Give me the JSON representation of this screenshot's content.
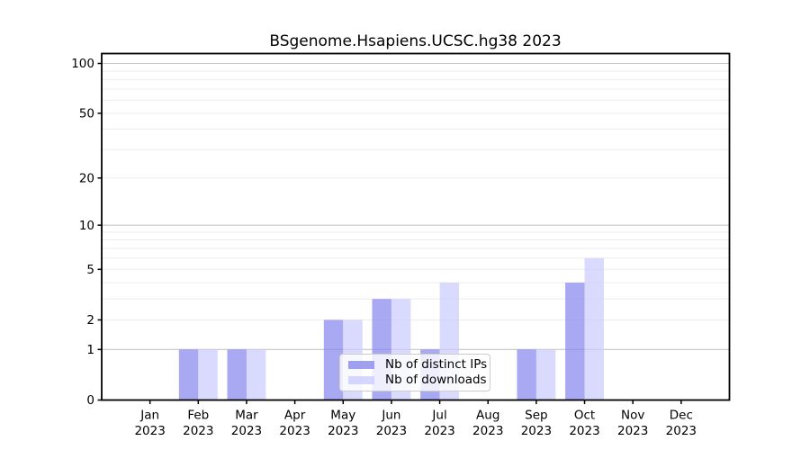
{
  "chart_data": {
    "type": "bar",
    "title": "BSgenome.Hsapiens.UCSC.hg38 2023",
    "categories": [
      "Jan",
      "Feb",
      "Mar",
      "Apr",
      "May",
      "Jun",
      "Jul",
      "Aug",
      "Sep",
      "Oct",
      "Nov",
      "Dec"
    ],
    "x_year_label": "2023",
    "series": [
      {
        "name": "Nb of distinct IPs",
        "color": "#8888ee",
        "fill_opacity": 0.72,
        "values": [
          0,
          1,
          1,
          0,
          2,
          3,
          1,
          0,
          1,
          4,
          0,
          0
        ]
      },
      {
        "name": "Nb of downloads",
        "color": "#ccccff",
        "fill_opacity": 0.72,
        "values": [
          0,
          1,
          1,
          0,
          2,
          3,
          4,
          0,
          1,
          6,
          0,
          0
        ]
      }
    ],
    "yscale": "log1p",
    "ylim": [
      0,
      115
    ],
    "yticks": [
      0,
      1,
      2,
      5,
      10,
      20,
      50,
      100
    ],
    "major_grid_values": [
      1,
      10,
      100
    ],
    "minor_grid_values": [
      2,
      3,
      4,
      5,
      6,
      7,
      8,
      9,
      20,
      30,
      40,
      50,
      60,
      70,
      80,
      90
    ],
    "grid": true,
    "legend_position": "lower center",
    "xlabel": "",
    "ylabel": ""
  },
  "colors": {
    "major_grid": "#c6c6c6",
    "minor_grid": "#ededed",
    "axis": "#000000",
    "background": "#ffffff"
  }
}
